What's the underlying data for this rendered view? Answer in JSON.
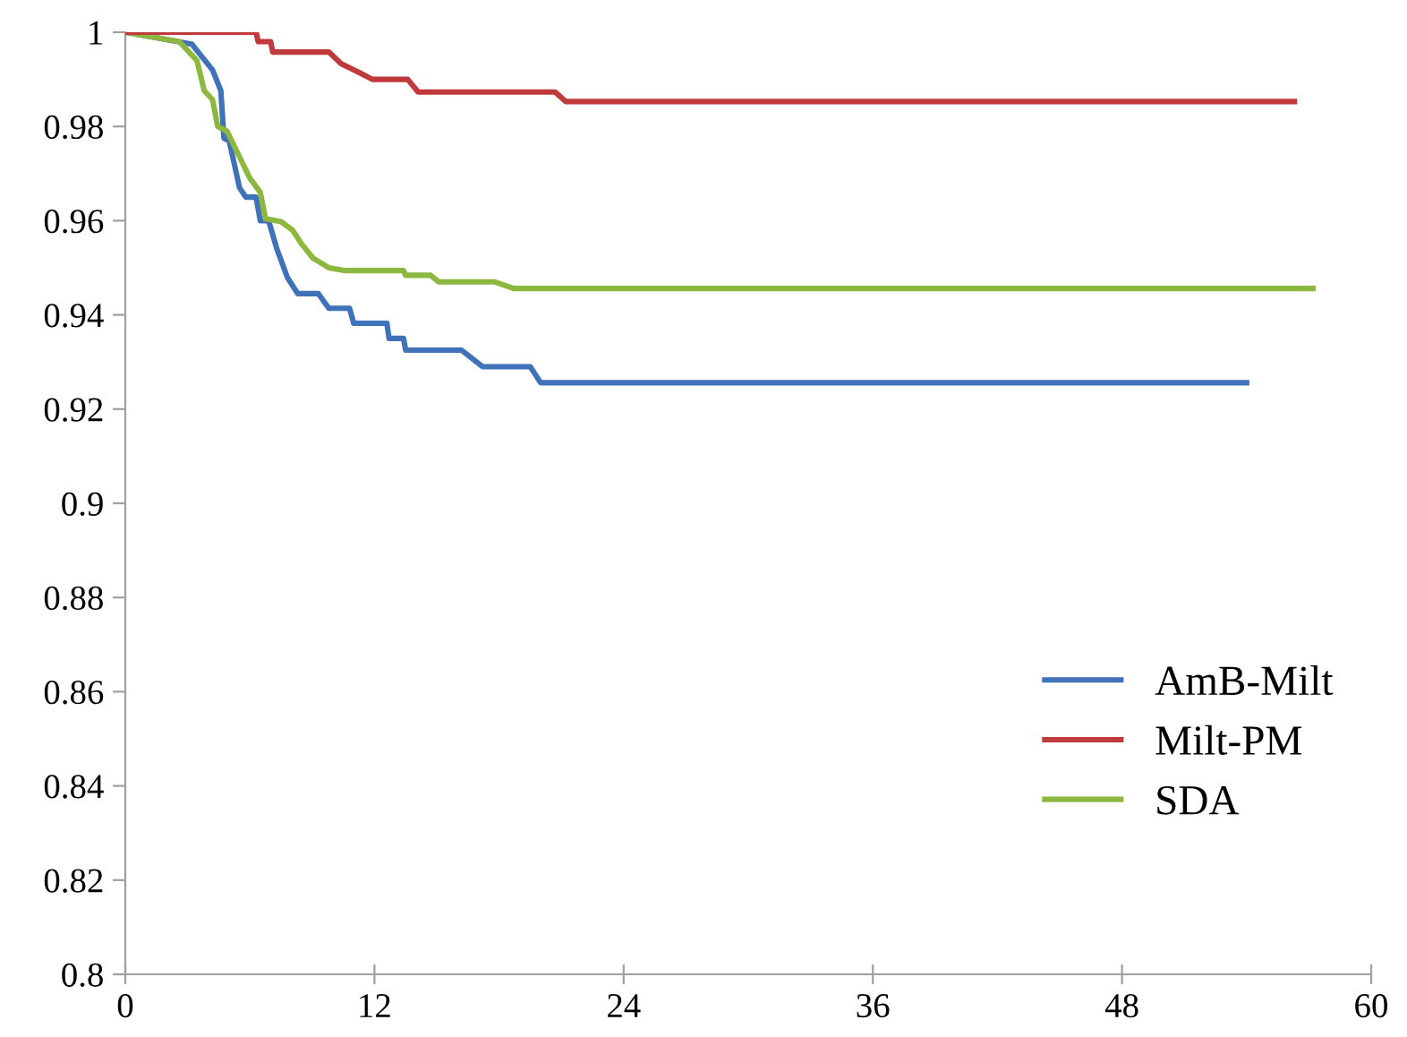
{
  "chart_data": {
    "type": "line",
    "xlim": [
      0,
      60
    ],
    "xticks": [
      0,
      12,
      24,
      36,
      48,
      60
    ],
    "ylim": [
      0.8,
      1
    ],
    "yticks": [
      0.8,
      0.82,
      0.84,
      0.86,
      0.88,
      0.9,
      0.92,
      0.94,
      0.96,
      0.98,
      1
    ],
    "grid": false,
    "legend": "bottom right",
    "marker": "none",
    "line_style": "solid",
    "series": [
      {
        "name": "AmB-Milt",
        "color": "#3f72b8",
        "x": [
          0,
          3.2,
          4.2,
          4.6,
          4.75,
          5.0,
          5.5,
          5.8,
          6.3,
          6.5,
          6.9,
          7.3,
          7.8,
          8.3,
          9.3,
          9.8,
          10.8,
          11.0,
          12.6,
          12.7,
          13.4,
          13.5,
          16.2,
          17.2,
          19.5,
          20.0,
          54.0
        ],
        "values": [
          1,
          0.9975,
          0.992,
          0.9876,
          0.9775,
          0.977,
          0.967,
          0.965,
          0.965,
          0.96,
          0.96,
          0.954,
          0.948,
          0.9445,
          0.9445,
          0.9414,
          0.9414,
          0.9382,
          0.9382,
          0.935,
          0.935,
          0.9325,
          0.9325,
          0.929,
          0.929,
          0.9256,
          0.9256
        ]
      },
      {
        "name": "Milt-PM",
        "color": "#c0393b",
        "x": [
          0,
          6.3,
          6.4,
          7.0,
          7.1,
          9.8,
          10.4,
          11.2,
          11.9,
          13.6,
          14.1,
          20.7,
          21.2,
          56.3
        ],
        "values": [
          1,
          1,
          0.998,
          0.998,
          0.9958,
          0.9958,
          0.9933,
          0.9916,
          0.99,
          0.99,
          0.9873,
          0.9873,
          0.9853,
          0.9853
        ]
      },
      {
        "name": "SDA",
        "color": "#8db83f",
        "x": [
          0,
          2.6,
          3.45,
          3.8,
          4.2,
          4.45,
          4.9,
          6.0,
          6.5,
          6.75,
          7.5,
          8.05,
          8.5,
          9.05,
          9.8,
          10.6,
          13.4,
          13.5,
          14.7,
          15.1,
          17.8,
          18.7,
          57.2
        ],
        "values": [
          1,
          0.998,
          0.994,
          0.9876,
          0.9857,
          0.98,
          0.979,
          0.969,
          0.966,
          0.9604,
          0.9598,
          0.958,
          0.955,
          0.952,
          0.95,
          0.9494,
          0.9494,
          0.9484,
          0.9484,
          0.947,
          0.947,
          0.9456,
          0.9456
        ]
      }
    ]
  }
}
